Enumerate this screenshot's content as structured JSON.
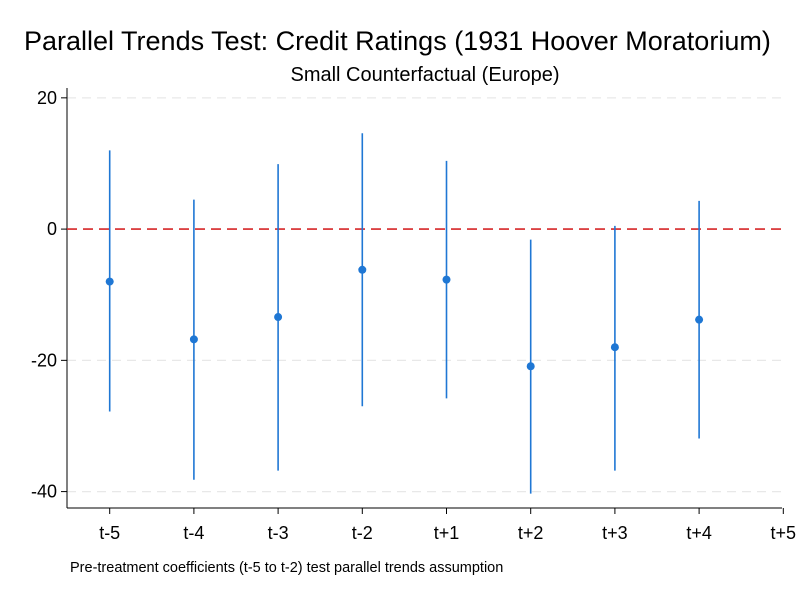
{
  "chart_data": {
    "type": "scatter",
    "title": "Parallel Trends Test: Credit Ratings (1931 Hoover Moratorium)",
    "subtitle": "Small Counterfactual (Europe)",
    "note": "Pre-treatment coefficients (t-5 to t-2) test parallel trends assumption",
    "xlabel": "",
    "ylabel": "",
    "categories": [
      "t-5",
      "t-4",
      "t-3",
      "t-2",
      "t+1",
      "t+2",
      "t+3",
      "t+4",
      "t+5"
    ],
    "ylim": [
      -42.5,
      21.5
    ],
    "yticks": [
      20,
      0,
      -20,
      -40
    ],
    "reference_line": {
      "y": 0,
      "style": "dashed",
      "color": "#d62728"
    },
    "grid": "horizontal-dashed",
    "series": [
      {
        "values": [
          -8.0,
          -16.8,
          -13.4,
          -6.2,
          -7.7,
          -20.9,
          -18.0,
          -13.8,
          null
        ],
        "ci_low": [
          -27.8,
          -38.2,
          -36.8,
          -27.0,
          -25.8,
          -40.3,
          -36.8,
          -31.9,
          null
        ],
        "ci_high": [
          12.0,
          4.5,
          9.9,
          14.6,
          10.4,
          -1.6,
          0.5,
          4.3,
          null
        ],
        "color": "#1f77d4"
      }
    ]
  }
}
